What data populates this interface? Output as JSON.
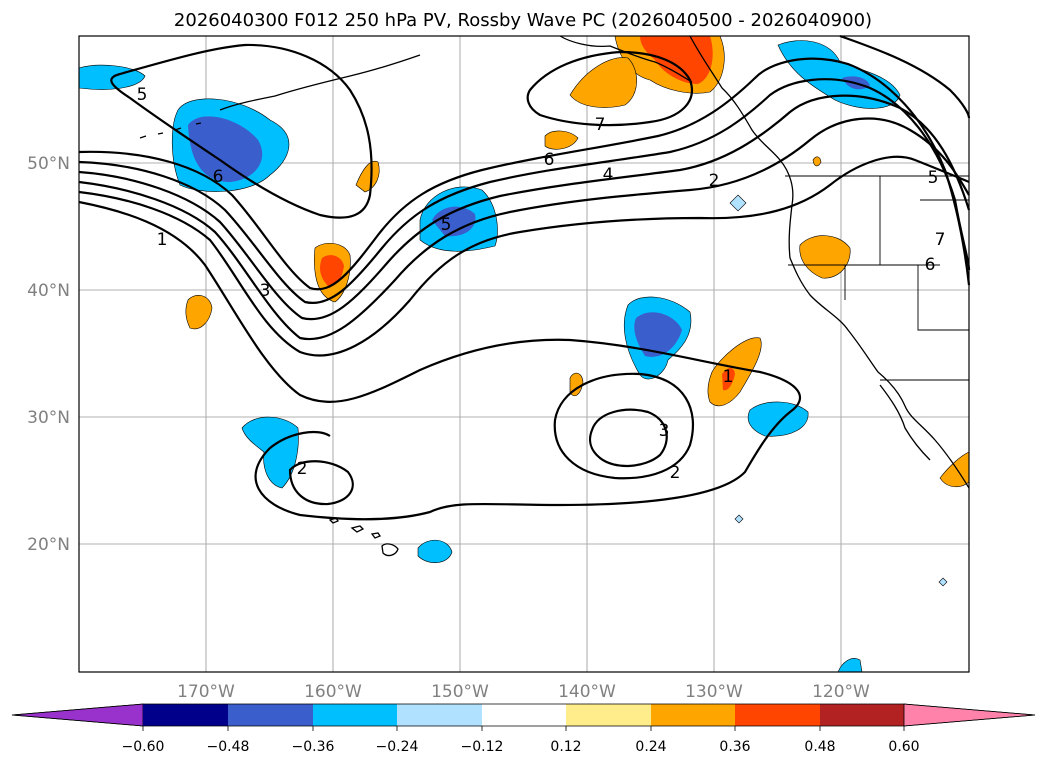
{
  "title": "2026040300 F012 250 hPa PV, Rossby Wave PC (2026040500 - 2026040900)",
  "map": {
    "lon_labels": [
      "170°W",
      "160°W",
      "150°W",
      "140°W",
      "130°W",
      "120°W"
    ],
    "lat_labels": [
      "50°N",
      "40°N",
      "30°N",
      "20°N"
    ],
    "contour_labels": [
      {
        "text": "5",
        "key": "a"
      },
      {
        "text": "6",
        "key": "b"
      },
      {
        "text": "1",
        "key": "c"
      },
      {
        "text": "3",
        "key": "d"
      },
      {
        "text": "5",
        "key": "e"
      },
      {
        "text": "6",
        "key": "f"
      },
      {
        "text": "7",
        "key": "g"
      },
      {
        "text": "4",
        "key": "h"
      },
      {
        "text": "2",
        "key": "i"
      },
      {
        "text": "5",
        "key": "j"
      },
      {
        "text": "7",
        "key": "k"
      },
      {
        "text": "6",
        "key": "l"
      },
      {
        "text": "1",
        "key": "m"
      },
      {
        "text": "3",
        "key": "n"
      },
      {
        "text": "2",
        "key": "o"
      },
      {
        "text": "2",
        "key": "p"
      }
    ]
  },
  "colorbar": {
    "ticks": [
      "−0.60",
      "−0.48",
      "−0.36",
      "−0.24",
      "−0.12",
      "0.12",
      "0.24",
      "0.36",
      "0.48",
      "0.60"
    ],
    "colors": [
      "#9932cc",
      "#00008b",
      "#3a5fcd",
      "#00bfff",
      "#b0e2ff",
      "#ffffff",
      "#ffec8b",
      "#ffa500",
      "#ff4500",
      "#b22222",
      "#ff82ab"
    ]
  },
  "colors": {
    "dark_blue": "#3a5fcd",
    "blue": "#00bfff",
    "light_blue": "#b0e2ff",
    "yellow": "#ffec8b",
    "orange": "#ffa500",
    "red": "#ff4500"
  }
}
